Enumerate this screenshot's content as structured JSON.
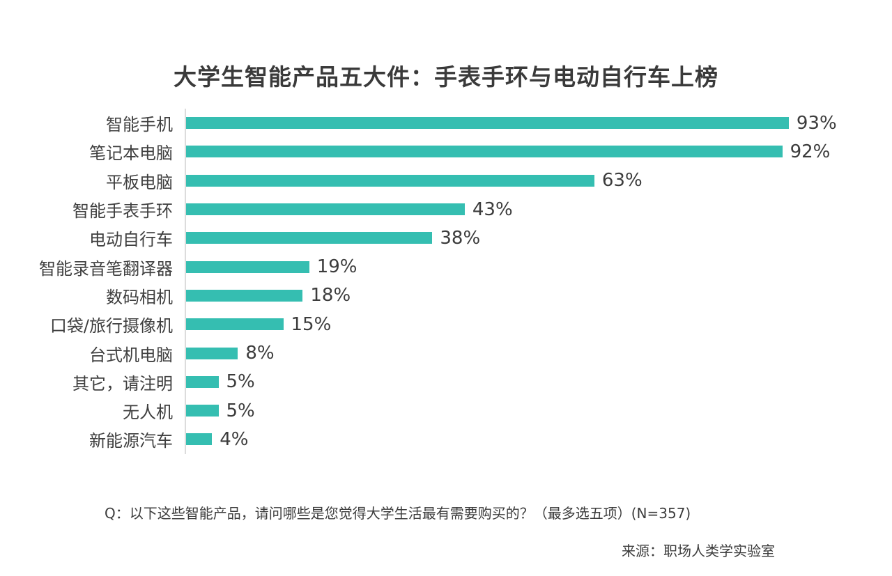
{
  "page": {
    "title": "大学生智能产品五大件：手表手环与电动自行车上榜",
    "question": "Q：以下这些智能产品，请问哪些是您觉得大学生活最有需要购买的？（最多选五项）(N=357)",
    "source": "来源：职场人类学实验室"
  },
  "colors": {
    "bar": "#35BEB1",
    "axis": "#DCDCDC",
    "title_text": "#3A3A3A",
    "label_text": "#3F3F3F",
    "value_text": "#3C3C3C",
    "background": "#FFFFFF"
  },
  "chart_data": {
    "type": "bar",
    "orientation": "horizontal",
    "title": "大学生智能产品五大件：手表手环与电动自行车上榜",
    "categories": [
      "智能手机",
      "笔记本电脑",
      "平板电脑",
      "智能手表手环",
      "电动自行车",
      "智能录音笔翻译器",
      "数码相机",
      "口袋/旅行摄像机",
      "台式机电脑",
      "其它，请注明",
      "无人机",
      "新能源汽车"
    ],
    "values": [
      93,
      92,
      63,
      43,
      38,
      19,
      18,
      15,
      8,
      5,
      5,
      4
    ],
    "value_labels": [
      "93%",
      "92%",
      "63%",
      "43%",
      "38%",
      "19%",
      "18%",
      "15%",
      "8%",
      "5%",
      "5%",
      "4%"
    ],
    "xlabel": "",
    "ylabel": "",
    "xlim": [
      0,
      100
    ],
    "grid": false,
    "legend": false,
    "data_labels": "outside-end",
    "footnote": "Q：以下这些智能产品，请问哪些是您觉得大学生活最有需要购买的？（最多选五项）(N=357)",
    "source": "来源：职场人类学实验室"
  }
}
